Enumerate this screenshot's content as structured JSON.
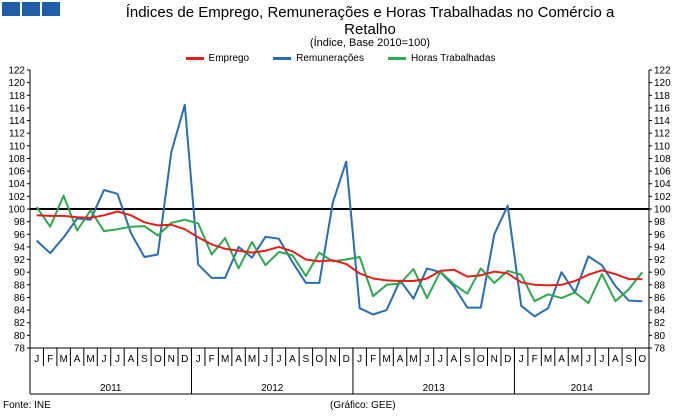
{
  "header": {
    "title": "Índices de Emprego, Remunerações e Horas Trabalhadas no Comércio a Retalho",
    "subtitle": "(Índice, Base 2010=100)"
  },
  "footer": {
    "source": "Fonte: INE",
    "credit": "(Gráfico: GEE)"
  },
  "colors": {
    "emprego": "#e0201c",
    "remuneracoes": "#2a6db3",
    "horas": "#2fa84f",
    "reference": "#000000"
  },
  "chart_data": {
    "type": "line",
    "title": "Índices de Emprego, Remunerações e Horas Trabalhadas no Comércio a Retalho",
    "subtitle": "(Índice, Base 2010=100)",
    "ylim": [
      78,
      122
    ],
    "yticks": [
      78,
      80,
      82,
      84,
      86,
      88,
      90,
      92,
      94,
      96,
      98,
      100,
      102,
      104,
      106,
      108,
      110,
      112,
      114,
      116,
      118,
      120,
      122
    ],
    "reference_line": 100,
    "grid": false,
    "legend_position": "top",
    "months": [
      "J",
      "F",
      "M",
      "A",
      "M",
      "J",
      "J",
      "A",
      "S",
      "O",
      "N",
      "D",
      "J",
      "F",
      "M",
      "A",
      "M",
      "J",
      "J",
      "A",
      "S",
      "O",
      "N",
      "D",
      "J",
      "F",
      "M",
      "A",
      "M",
      "J",
      "J",
      "A",
      "S",
      "O",
      "N",
      "D",
      "J",
      "F",
      "M",
      "A",
      "M",
      "J",
      "J",
      "A",
      "S",
      "O"
    ],
    "years": [
      {
        "label": "2011",
        "months": 12
      },
      {
        "label": "2012",
        "months": 12
      },
      {
        "label": "2013",
        "months": 12
      },
      {
        "label": "2014",
        "months": 10
      }
    ],
    "series": [
      {
        "name": "Emprego",
        "key": "emprego",
        "values": [
          99.0,
          98.9,
          98.9,
          98.7,
          98.6,
          99.0,
          99.6,
          99.0,
          97.9,
          97.4,
          97.5,
          96.8,
          95.5,
          94.4,
          93.7,
          93.4,
          93.1,
          93.4,
          94.0,
          93.3,
          92.0,
          91.7,
          91.9,
          91.3,
          89.8,
          89.0,
          88.7,
          88.6,
          88.6,
          89.0,
          90.2,
          90.4,
          89.3,
          89.5,
          90.1,
          89.8,
          88.4,
          88.0,
          87.9,
          88.0,
          88.6,
          89.6,
          90.3,
          89.7,
          88.9,
          88.9
        ]
      },
      {
        "name": "Remunerações",
        "key": "remuneracoes",
        "values": [
          95.0,
          93.0,
          95.5,
          98.5,
          98.3,
          103.0,
          102.4,
          96.2,
          92.4,
          92.8,
          109.0,
          116.5,
          91.2,
          89.1,
          89.1,
          94.0,
          92.3,
          95.6,
          95.3,
          91.6,
          88.3,
          88.3,
          101.0,
          107.5,
          84.3,
          83.3,
          84.0,
          88.7,
          85.8,
          90.6,
          90.0,
          87.8,
          84.4,
          84.4,
          96.0,
          100.5,
          84.7,
          83.0,
          84.3,
          90.0,
          86.8,
          92.5,
          91.1,
          87.8,
          85.5,
          85.4
        ]
      },
      {
        "name": "Horas Trabalhadas",
        "key": "horas",
        "values": [
          100.3,
          97.2,
          102.1,
          96.6,
          99.8,
          96.5,
          96.8,
          97.2,
          97.3,
          95.8,
          97.8,
          98.3,
          97.7,
          92.8,
          95.4,
          90.6,
          94.8,
          91.1,
          93.2,
          92.7,
          89.4,
          93.1,
          91.7,
          92.0,
          92.4,
          86.2,
          88.0,
          88.2,
          90.5,
          85.9,
          90.1,
          88.1,
          86.6,
          90.6,
          88.3,
          90.2,
          89.6,
          85.4,
          86.5,
          85.9,
          86.8,
          85.1,
          89.7,
          85.4,
          87.3,
          90.0
        ]
      }
    ]
  }
}
